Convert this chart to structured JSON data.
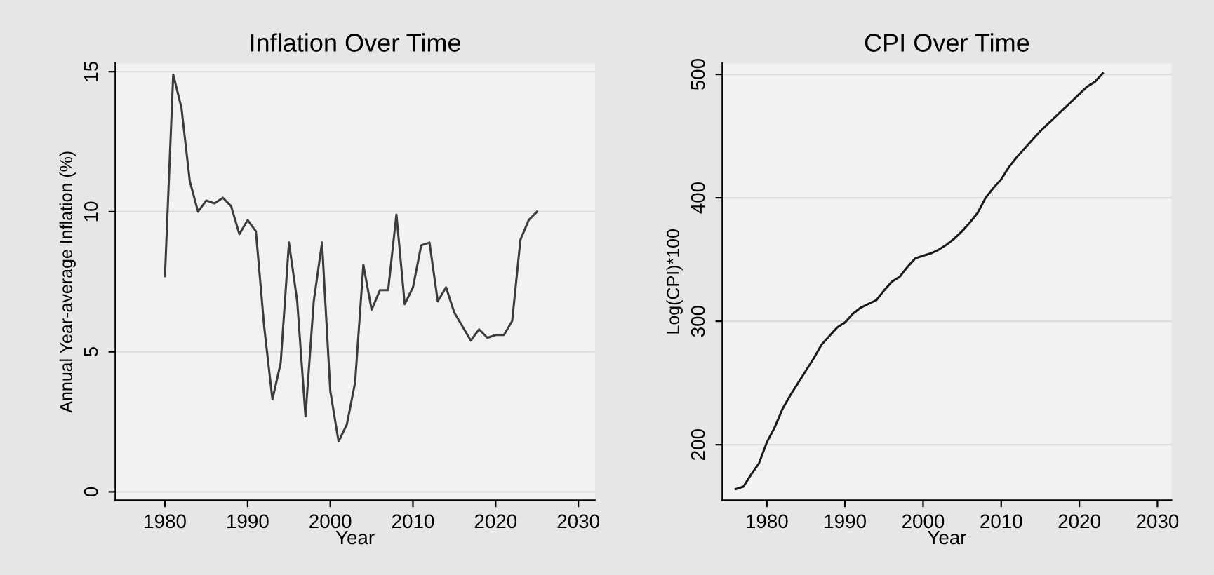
{
  "chart_data": [
    {
      "type": "line",
      "title": "Inflation Over Time",
      "xlabel": "Year",
      "ylabel": "Annual Year-average Inflation (%)",
      "x": [
        1980,
        1981,
        1982,
        1983,
        1984,
        1985,
        1986,
        1987,
        1988,
        1989,
        1990,
        1991,
        1992,
        1993,
        1994,
        1995,
        1996,
        1997,
        1998,
        1999,
        2000,
        2001,
        2002,
        2003,
        2004,
        2005,
        2006,
        2007,
        2008,
        2009,
        2010,
        2011,
        2012,
        2013,
        2014,
        2015,
        2016,
        2017,
        2018,
        2019,
        2020,
        2021,
        2022,
        2023,
        2024,
        2025
      ],
      "series": [
        {
          "color": "#3c3c3c",
          "values": [
            7.7,
            14.9,
            13.7,
            11.1,
            10.0,
            10.4,
            10.3,
            10.5,
            10.2,
            9.2,
            9.7,
            9.3,
            5.9,
            3.3,
            4.6,
            8.9,
            6.8,
            2.7,
            6.8,
            8.9,
            3.6,
            1.8,
            2.4,
            3.9,
            8.1,
            6.5,
            7.2,
            7.2,
            9.9,
            6.7,
            7.3,
            8.8,
            8.9,
            6.8,
            7.3,
            6.4,
            5.9,
            5.4,
            5.8,
            5.5,
            5.6,
            5.6,
            6.1,
            9.0,
            9.7,
            10.0
          ]
        }
      ],
      "xlim": [
        1974,
        2032
      ],
      "xticks": [
        1980,
        1990,
        2000,
        2010,
        2020,
        2030
      ],
      "ylim": [
        -0.3,
        15.3
      ],
      "yticks": [
        0,
        5,
        10,
        15
      ],
      "grid": "y",
      "legend": false,
      "marker": "none",
      "line_style": "solid"
    },
    {
      "type": "line",
      "title": "CPI Over Time",
      "xlabel": "Year",
      "ylabel": "Log(CPI)*100",
      "x": [
        1976,
        1977,
        1978,
        1979,
        1980,
        1981,
        1982,
        1983,
        1984,
        1985,
        1986,
        1987,
        1988,
        1989,
        1990,
        1991,
        1992,
        1993,
        1994,
        1995,
        1996,
        1997,
        1998,
        1999,
        2000,
        2001,
        2002,
        2003,
        2004,
        2005,
        2006,
        2007,
        2008,
        2009,
        2010,
        2011,
        2012,
        2013,
        2014,
        2015,
        2016,
        2017,
        2018,
        2019,
        2020,
        2021,
        2022,
        2023
      ],
      "series": [
        {
          "color": "#1a1a1a",
          "values": [
            164,
            166,
            176,
            185,
            202,
            214,
            229,
            240,
            250,
            260,
            270,
            281,
            288,
            295,
            299,
            306,
            311,
            314,
            317,
            325,
            332,
            336,
            344,
            351,
            353,
            355,
            358,
            362,
            367,
            373,
            380,
            388,
            400,
            408,
            415,
            425,
            433,
            440,
            447,
            454,
            460,
            466,
            472,
            478,
            484,
            490,
            494,
            501
          ]
        }
      ],
      "xlim": [
        1974.3,
        2031.8
      ],
      "xticks": [
        1980,
        1990,
        2000,
        2010,
        2020,
        2030
      ],
      "ylim": [
        155,
        509
      ],
      "yticks": [
        200,
        300,
        400,
        500
      ],
      "grid": "y",
      "legend": false,
      "marker": "none",
      "line_style": "solid"
    }
  ]
}
